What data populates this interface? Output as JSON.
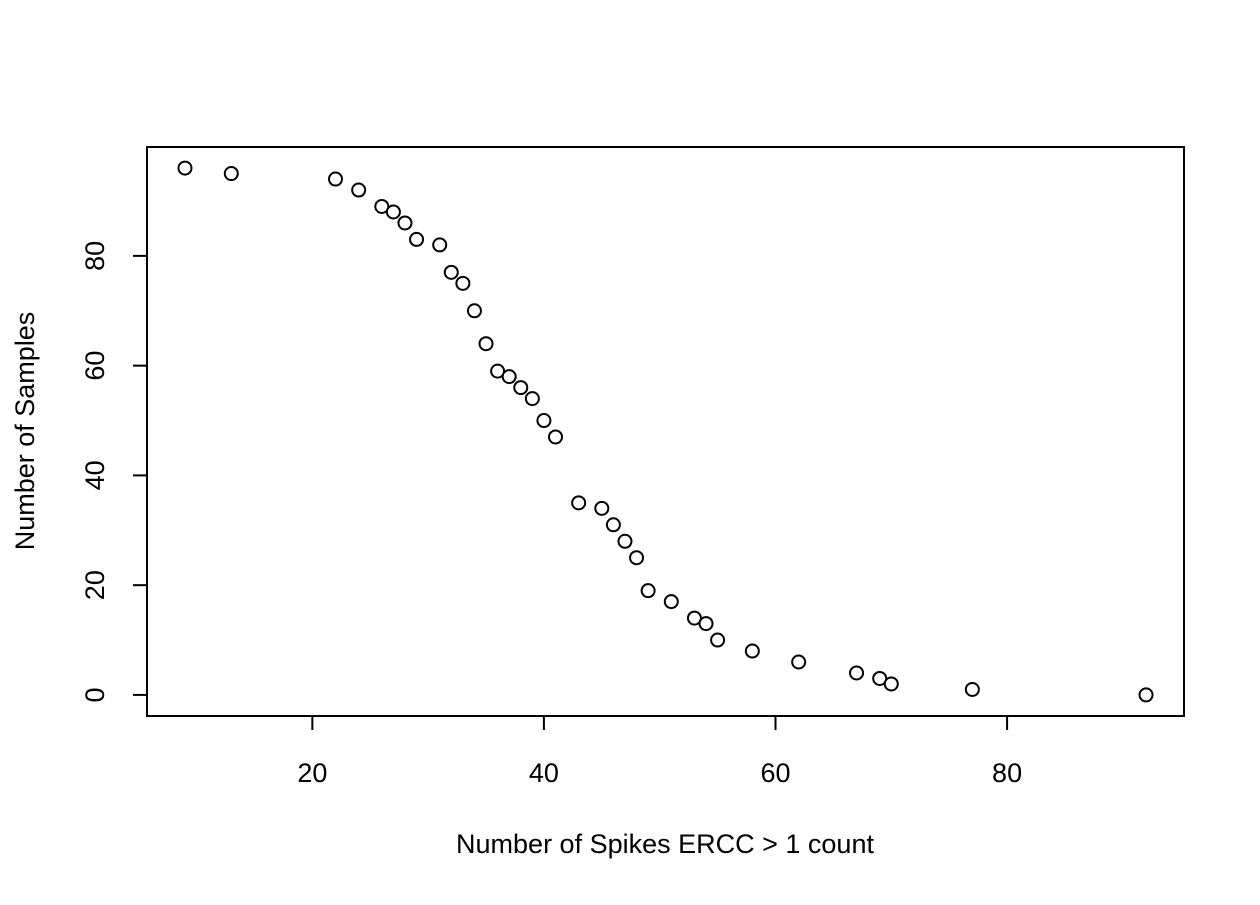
{
  "chart_data": {
    "type": "scatter",
    "title": "",
    "xlabel": "Number of Spikes ERCC > 1 count",
    "ylabel": "Number of Samples",
    "xlim": [
      5.72,
      95.28
    ],
    "ylim": [
      -3.84,
      99.84
    ],
    "x_ticks": [
      20,
      40,
      60,
      80
    ],
    "y_ticks": [
      0,
      20,
      40,
      60,
      80
    ],
    "x_tick_labels": [
      "20",
      "40",
      "60",
      "80"
    ],
    "y_tick_labels": [
      "0",
      "20",
      "40",
      "60",
      "80"
    ],
    "grid": false,
    "legend": "none",
    "marker": "open-circle",
    "colors": {
      "point_stroke": "#000000",
      "point_fill": "#ffffff",
      "axis": "#000000",
      "background": "#ffffff"
    },
    "points": [
      {
        "x": 9,
        "y": 96
      },
      {
        "x": 13,
        "y": 95
      },
      {
        "x": 22,
        "y": 94
      },
      {
        "x": 24,
        "y": 92
      },
      {
        "x": 26,
        "y": 89
      },
      {
        "x": 27,
        "y": 88
      },
      {
        "x": 28,
        "y": 86
      },
      {
        "x": 29,
        "y": 83
      },
      {
        "x": 31,
        "y": 82
      },
      {
        "x": 32,
        "y": 77
      },
      {
        "x": 33,
        "y": 75
      },
      {
        "x": 34,
        "y": 70
      },
      {
        "x": 35,
        "y": 64
      },
      {
        "x": 36,
        "y": 59
      },
      {
        "x": 37,
        "y": 58
      },
      {
        "x": 38,
        "y": 56
      },
      {
        "x": 39,
        "y": 54
      },
      {
        "x": 40,
        "y": 50
      },
      {
        "x": 41,
        "y": 47
      },
      {
        "x": 43,
        "y": 35
      },
      {
        "x": 45,
        "y": 34
      },
      {
        "x": 46,
        "y": 31
      },
      {
        "x": 47,
        "y": 28
      },
      {
        "x": 48,
        "y": 25
      },
      {
        "x": 49,
        "y": 19
      },
      {
        "x": 51,
        "y": 17
      },
      {
        "x": 53,
        "y": 14
      },
      {
        "x": 54,
        "y": 13
      },
      {
        "x": 55,
        "y": 10
      },
      {
        "x": 58,
        "y": 8
      },
      {
        "x": 62,
        "y": 6
      },
      {
        "x": 67,
        "y": 4
      },
      {
        "x": 69,
        "y": 3
      },
      {
        "x": 70,
        "y": 2
      },
      {
        "x": 77,
        "y": 1
      },
      {
        "x": 92,
        "y": 0
      }
    ]
  }
}
